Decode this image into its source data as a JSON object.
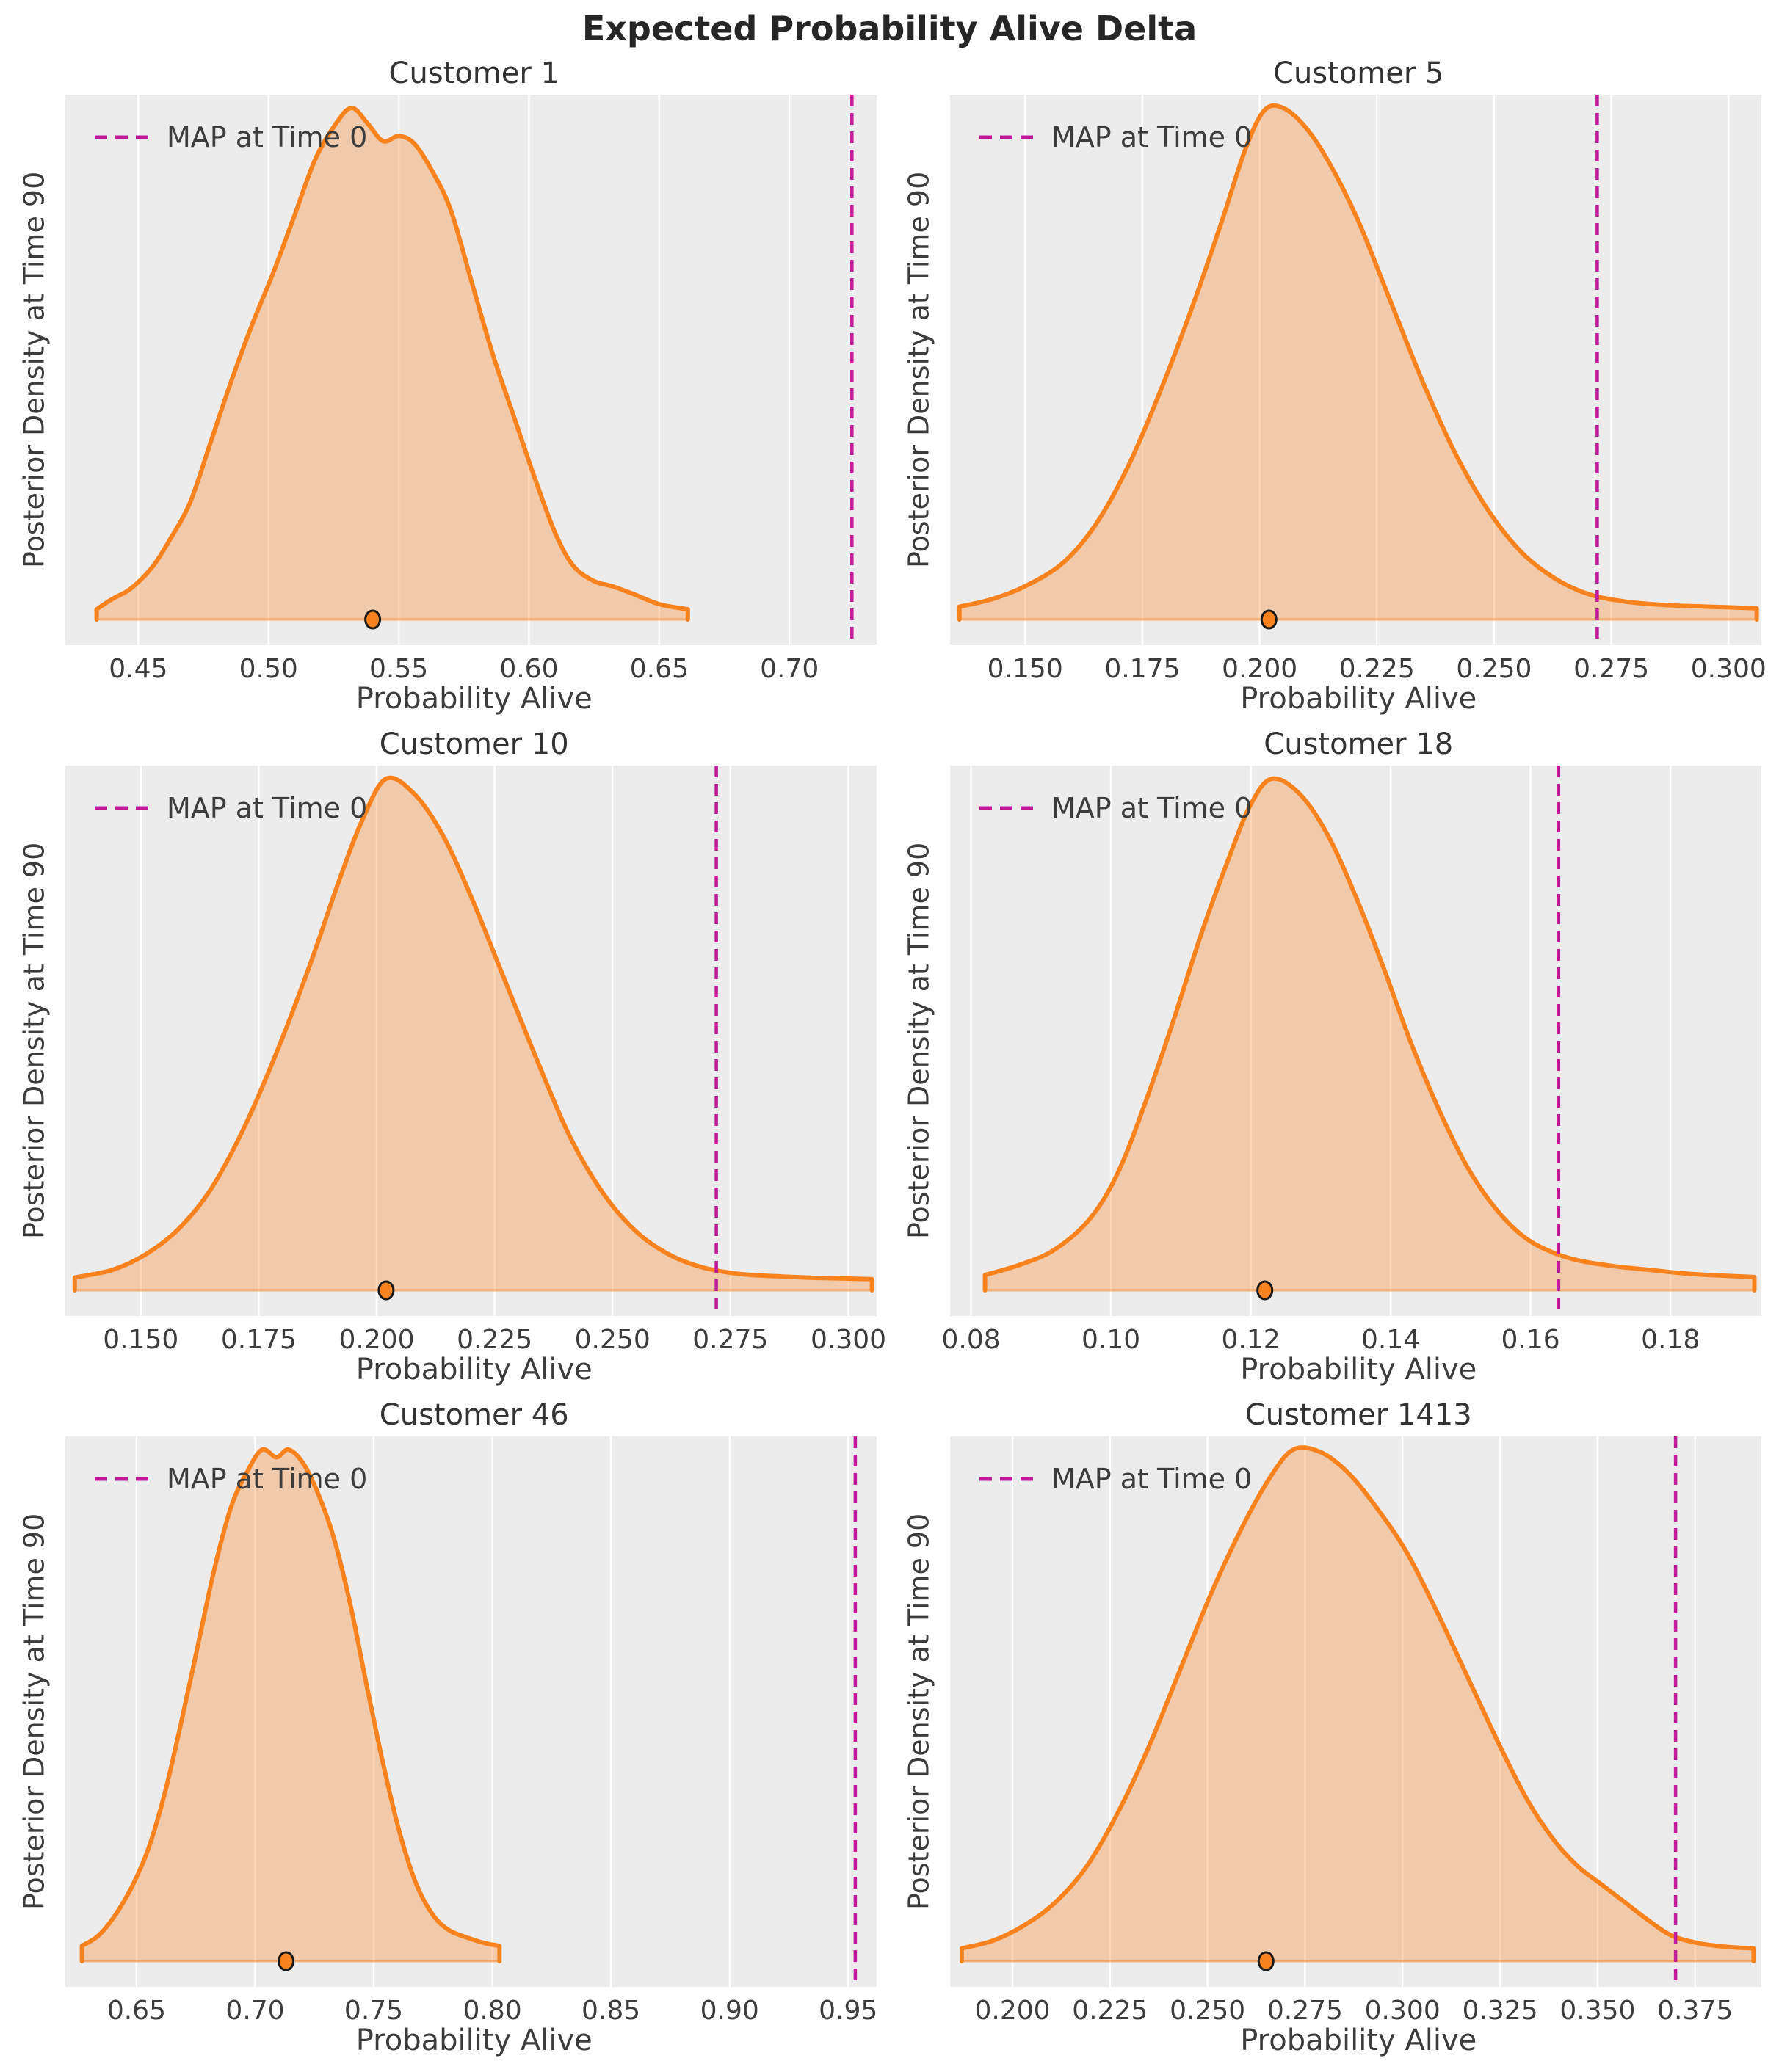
{
  "suptitle": "Expected Probability Alive Delta",
  "colors": {
    "curve": "#F8821E",
    "fill": "rgba(248,130,30,0.32)",
    "baseline": "rgba(248,130,30,0.55)",
    "map_line": "#C2189C",
    "axes_bg": "#ECECEC",
    "grid": "#FFFFFF",
    "text": "#3C3C3C",
    "dot_edge": "#1A1A1A",
    "suptitle": "#262626"
  },
  "chart_data": [
    {
      "type": "area",
      "title": "Customer 1",
      "xlabel": "Probability Alive",
      "ylabel": "Posterior Density at Time 90",
      "legend": "MAP at Time 0",
      "xlim": [
        0.422,
        0.7335
      ],
      "xticks": [
        0.45,
        0.5,
        0.55,
        0.6,
        0.65,
        0.7
      ],
      "xtick_labels": [
        "0.45",
        "0.50",
        "0.55",
        "0.60",
        "0.65",
        "0.70"
      ],
      "map_at_time_0": 0.724,
      "median_dot": 0.54,
      "kde": [
        [
          0.434,
          0.02
        ],
        [
          0.44,
          0.04
        ],
        [
          0.447,
          0.06
        ],
        [
          0.455,
          0.1
        ],
        [
          0.462,
          0.155
        ],
        [
          0.47,
          0.23
        ],
        [
          0.478,
          0.35
        ],
        [
          0.486,
          0.47
        ],
        [
          0.494,
          0.58
        ],
        [
          0.502,
          0.68
        ],
        [
          0.51,
          0.79
        ],
        [
          0.518,
          0.9
        ],
        [
          0.526,
          0.97
        ],
        [
          0.532,
          1.0
        ],
        [
          0.538,
          0.97
        ],
        [
          0.544,
          0.935
        ],
        [
          0.55,
          0.945
        ],
        [
          0.556,
          0.93
        ],
        [
          0.563,
          0.875
        ],
        [
          0.57,
          0.8
        ],
        [
          0.578,
          0.66
        ],
        [
          0.586,
          0.52
        ],
        [
          0.594,
          0.4
        ],
        [
          0.602,
          0.28
        ],
        [
          0.61,
          0.17
        ],
        [
          0.617,
          0.105
        ],
        [
          0.625,
          0.075
        ],
        [
          0.632,
          0.065
        ],
        [
          0.64,
          0.05
        ],
        [
          0.65,
          0.03
        ],
        [
          0.661,
          0.02
        ]
      ]
    },
    {
      "type": "area",
      "title": "Customer 5",
      "xlabel": "Probability Alive",
      "ylabel": "Posterior Density at Time 90",
      "legend": "MAP at Time 0",
      "xlim": [
        0.134,
        0.307
      ],
      "xticks": [
        0.15,
        0.175,
        0.2,
        0.225,
        0.25,
        0.275,
        0.3
      ],
      "xtick_labels": [
        "0.150",
        "0.175",
        "0.200",
        "0.225",
        "0.250",
        "0.275",
        "0.300"
      ],
      "map_at_time_0": 0.272,
      "median_dot": 0.202,
      "kde": [
        [
          0.136,
          0.025
        ],
        [
          0.143,
          0.04
        ],
        [
          0.15,
          0.065
        ],
        [
          0.158,
          0.11
        ],
        [
          0.165,
          0.185
        ],
        [
          0.172,
          0.3
        ],
        [
          0.179,
          0.45
        ],
        [
          0.186,
          0.62
        ],
        [
          0.192,
          0.78
        ],
        [
          0.197,
          0.92
        ],
        [
          0.201,
          0.995
        ],
        [
          0.205,
          1.0
        ],
        [
          0.21,
          0.96
        ],
        [
          0.215,
          0.89
        ],
        [
          0.221,
          0.78
        ],
        [
          0.228,
          0.62
        ],
        [
          0.235,
          0.46
        ],
        [
          0.242,
          0.32
        ],
        [
          0.249,
          0.21
        ],
        [
          0.256,
          0.13
        ],
        [
          0.263,
          0.08
        ],
        [
          0.27,
          0.05
        ],
        [
          0.278,
          0.035
        ],
        [
          0.287,
          0.028
        ],
        [
          0.296,
          0.025
        ],
        [
          0.306,
          0.022
        ]
      ]
    },
    {
      "type": "area",
      "title": "Customer 10",
      "xlabel": "Probability Alive",
      "ylabel": "Posterior Density at Time 90",
      "legend": "MAP at Time 0",
      "xlim": [
        0.134,
        0.306
      ],
      "xticks": [
        0.15,
        0.175,
        0.2,
        0.225,
        0.25,
        0.275,
        0.3
      ],
      "xtick_labels": [
        "0.150",
        "0.175",
        "0.200",
        "0.225",
        "0.250",
        "0.275",
        "0.300"
      ],
      "map_at_time_0": 0.272,
      "median_dot": 0.202,
      "kde": [
        [
          0.136,
          0.025
        ],
        [
          0.144,
          0.04
        ],
        [
          0.151,
          0.07
        ],
        [
          0.158,
          0.12
        ],
        [
          0.165,
          0.2
        ],
        [
          0.172,
          0.32
        ],
        [
          0.179,
          0.47
        ],
        [
          0.186,
          0.64
        ],
        [
          0.192,
          0.8
        ],
        [
          0.197,
          0.92
        ],
        [
          0.202,
          1.0
        ],
        [
          0.208,
          0.97
        ],
        [
          0.214,
          0.89
        ],
        [
          0.22,
          0.77
        ],
        [
          0.227,
          0.61
        ],
        [
          0.234,
          0.45
        ],
        [
          0.241,
          0.3
        ],
        [
          0.248,
          0.19
        ],
        [
          0.255,
          0.115
        ],
        [
          0.262,
          0.07
        ],
        [
          0.269,
          0.045
        ],
        [
          0.277,
          0.032
        ],
        [
          0.286,
          0.027
        ],
        [
          0.295,
          0.024
        ],
        [
          0.305,
          0.022
        ]
      ]
    },
    {
      "type": "area",
      "title": "Customer 18",
      "xlabel": "Probability Alive",
      "ylabel": "Posterior Density at Time 90",
      "legend": "MAP at Time 0",
      "xlim": [
        0.077,
        0.193
      ],
      "xticks": [
        0.08,
        0.1,
        0.12,
        0.14,
        0.16,
        0.18
      ],
      "xtick_labels": [
        "0.08",
        "0.10",
        "0.12",
        "0.14",
        "0.16",
        "0.18"
      ],
      "map_at_time_0": 0.164,
      "median_dot": 0.122,
      "kde": [
        [
          0.082,
          0.03
        ],
        [
          0.087,
          0.05
        ],
        [
          0.092,
          0.08
        ],
        [
          0.097,
          0.14
        ],
        [
          0.101,
          0.23
        ],
        [
          0.105,
          0.37
        ],
        [
          0.109,
          0.53
        ],
        [
          0.113,
          0.7
        ],
        [
          0.117,
          0.85
        ],
        [
          0.12,
          0.95
        ],
        [
          0.123,
          1.0
        ],
        [
          0.127,
          0.97
        ],
        [
          0.131,
          0.89
        ],
        [
          0.135,
          0.77
        ],
        [
          0.139,
          0.63
        ],
        [
          0.143,
          0.48
        ],
        [
          0.147,
          0.35
        ],
        [
          0.151,
          0.24
        ],
        [
          0.155,
          0.16
        ],
        [
          0.159,
          0.105
        ],
        [
          0.163,
          0.075
        ],
        [
          0.167,
          0.058
        ],
        [
          0.172,
          0.047
        ],
        [
          0.177,
          0.04
        ],
        [
          0.183,
          0.032
        ],
        [
          0.192,
          0.026
        ]
      ]
    },
    {
      "type": "area",
      "title": "Customer 46",
      "xlabel": "Probability Alive",
      "ylabel": "Posterior Density at Time 90",
      "legend": "MAP at Time 0",
      "xlim": [
        0.62,
        0.962
      ],
      "xticks": [
        0.65,
        0.7,
        0.75,
        0.8,
        0.85,
        0.9,
        0.95
      ],
      "xtick_labels": [
        "0.65",
        "0.70",
        "0.75",
        "0.80",
        "0.85",
        "0.90",
        "0.95"
      ],
      "map_at_time_0": 0.953,
      "median_dot": 0.713,
      "kde": [
        [
          0.627,
          0.03
        ],
        [
          0.634,
          0.05
        ],
        [
          0.641,
          0.09
        ],
        [
          0.648,
          0.145
        ],
        [
          0.655,
          0.22
        ],
        [
          0.662,
          0.33
        ],
        [
          0.669,
          0.47
        ],
        [
          0.676,
          0.62
        ],
        [
          0.683,
          0.77
        ],
        [
          0.69,
          0.89
        ],
        [
          0.697,
          0.96
        ],
        [
          0.703,
          1.0
        ],
        [
          0.709,
          0.985
        ],
        [
          0.714,
          1.0
        ],
        [
          0.72,
          0.975
        ],
        [
          0.726,
          0.92
        ],
        [
          0.733,
          0.83
        ],
        [
          0.74,
          0.7
        ],
        [
          0.747,
          0.54
        ],
        [
          0.754,
          0.385
        ],
        [
          0.761,
          0.25
        ],
        [
          0.768,
          0.15
        ],
        [
          0.775,
          0.09
        ],
        [
          0.782,
          0.06
        ],
        [
          0.79,
          0.045
        ],
        [
          0.797,
          0.035
        ],
        [
          0.803,
          0.03
        ]
      ]
    },
    {
      "type": "area",
      "title": "Customer 1413",
      "xlabel": "Probability Alive",
      "ylabel": "Posterior Density at Time 90",
      "legend": "MAP at Time 0",
      "xlim": [
        0.184,
        0.392
      ],
      "xticks": [
        0.2,
        0.225,
        0.25,
        0.275,
        0.3,
        0.325,
        0.35,
        0.375
      ],
      "xtick_labels": [
        "0.200",
        "0.225",
        "0.250",
        "0.275",
        "0.300",
        "0.325",
        "0.350",
        "0.375"
      ],
      "map_at_time_0": 0.37,
      "median_dot": 0.265,
      "kde": [
        [
          0.187,
          0.025
        ],
        [
          0.195,
          0.04
        ],
        [
          0.203,
          0.07
        ],
        [
          0.211,
          0.115
        ],
        [
          0.219,
          0.185
        ],
        [
          0.227,
          0.29
        ],
        [
          0.235,
          0.42
        ],
        [
          0.243,
          0.57
        ],
        [
          0.251,
          0.72
        ],
        [
          0.259,
          0.85
        ],
        [
          0.266,
          0.945
        ],
        [
          0.272,
          1.0
        ],
        [
          0.279,
          0.995
        ],
        [
          0.286,
          0.955
        ],
        [
          0.293,
          0.89
        ],
        [
          0.301,
          0.8
        ],
        [
          0.309,
          0.68
        ],
        [
          0.317,
          0.55
        ],
        [
          0.325,
          0.42
        ],
        [
          0.332,
          0.315
        ],
        [
          0.339,
          0.235
        ],
        [
          0.345,
          0.185
        ],
        [
          0.351,
          0.15
        ],
        [
          0.357,
          0.115
        ],
        [
          0.363,
          0.08
        ],
        [
          0.369,
          0.05
        ],
        [
          0.376,
          0.035
        ],
        [
          0.383,
          0.028
        ],
        [
          0.39,
          0.025
        ]
      ]
    }
  ]
}
